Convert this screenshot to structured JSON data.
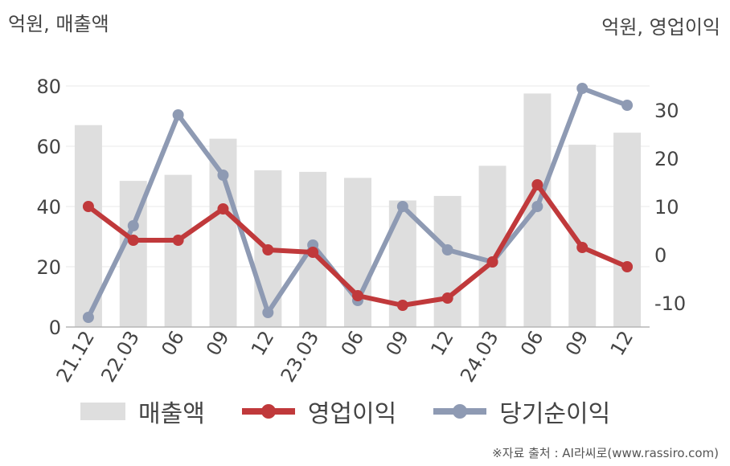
{
  "chart_data": {
    "type": "bar+line",
    "categories": [
      "21.12",
      "22.03",
      "06",
      "09",
      "12",
      "23.03",
      "06",
      "09",
      "12",
      "24.03",
      "06",
      "09",
      "12"
    ],
    "left_axis": {
      "unit_label": "억원, 매출액",
      "ylim": [
        0,
        80
      ],
      "ticks": [
        0,
        20,
        40,
        60,
        80
      ]
    },
    "right_axis": {
      "unit_label": "억원, 영업이익",
      "ylim": [
        -15,
        35
      ],
      "ticks": [
        -10,
        0,
        10,
        20,
        30
      ]
    },
    "series": [
      {
        "name": "매출액",
        "type": "bar",
        "axis": "left",
        "color": "#dedede",
        "values": [
          67,
          48.5,
          50.5,
          62.5,
          52,
          51.5,
          49.5,
          42,
          43.5,
          53.5,
          77.5,
          60.5,
          64.5
        ]
      },
      {
        "name": "영업이익",
        "type": "line",
        "axis": "right",
        "color": "#c0393b",
        "values": [
          10,
          3,
          3,
          9.5,
          1,
          0.5,
          -8.5,
          -10.5,
          -9,
          -1.5,
          14.5,
          1.5,
          -2.5
        ]
      },
      {
        "name": "당기순이익",
        "type": "line",
        "axis": "right",
        "color": "#8e9ab3",
        "values": [
          -13,
          6,
          29,
          16.5,
          -12,
          2,
          -9.5,
          10,
          1,
          -1.5,
          10,
          34.5,
          31
        ]
      }
    ],
    "grid": true,
    "legend_position": "bottom"
  },
  "source_text": "※자료 출처 : AI라씨로(www.rassiro.com)"
}
